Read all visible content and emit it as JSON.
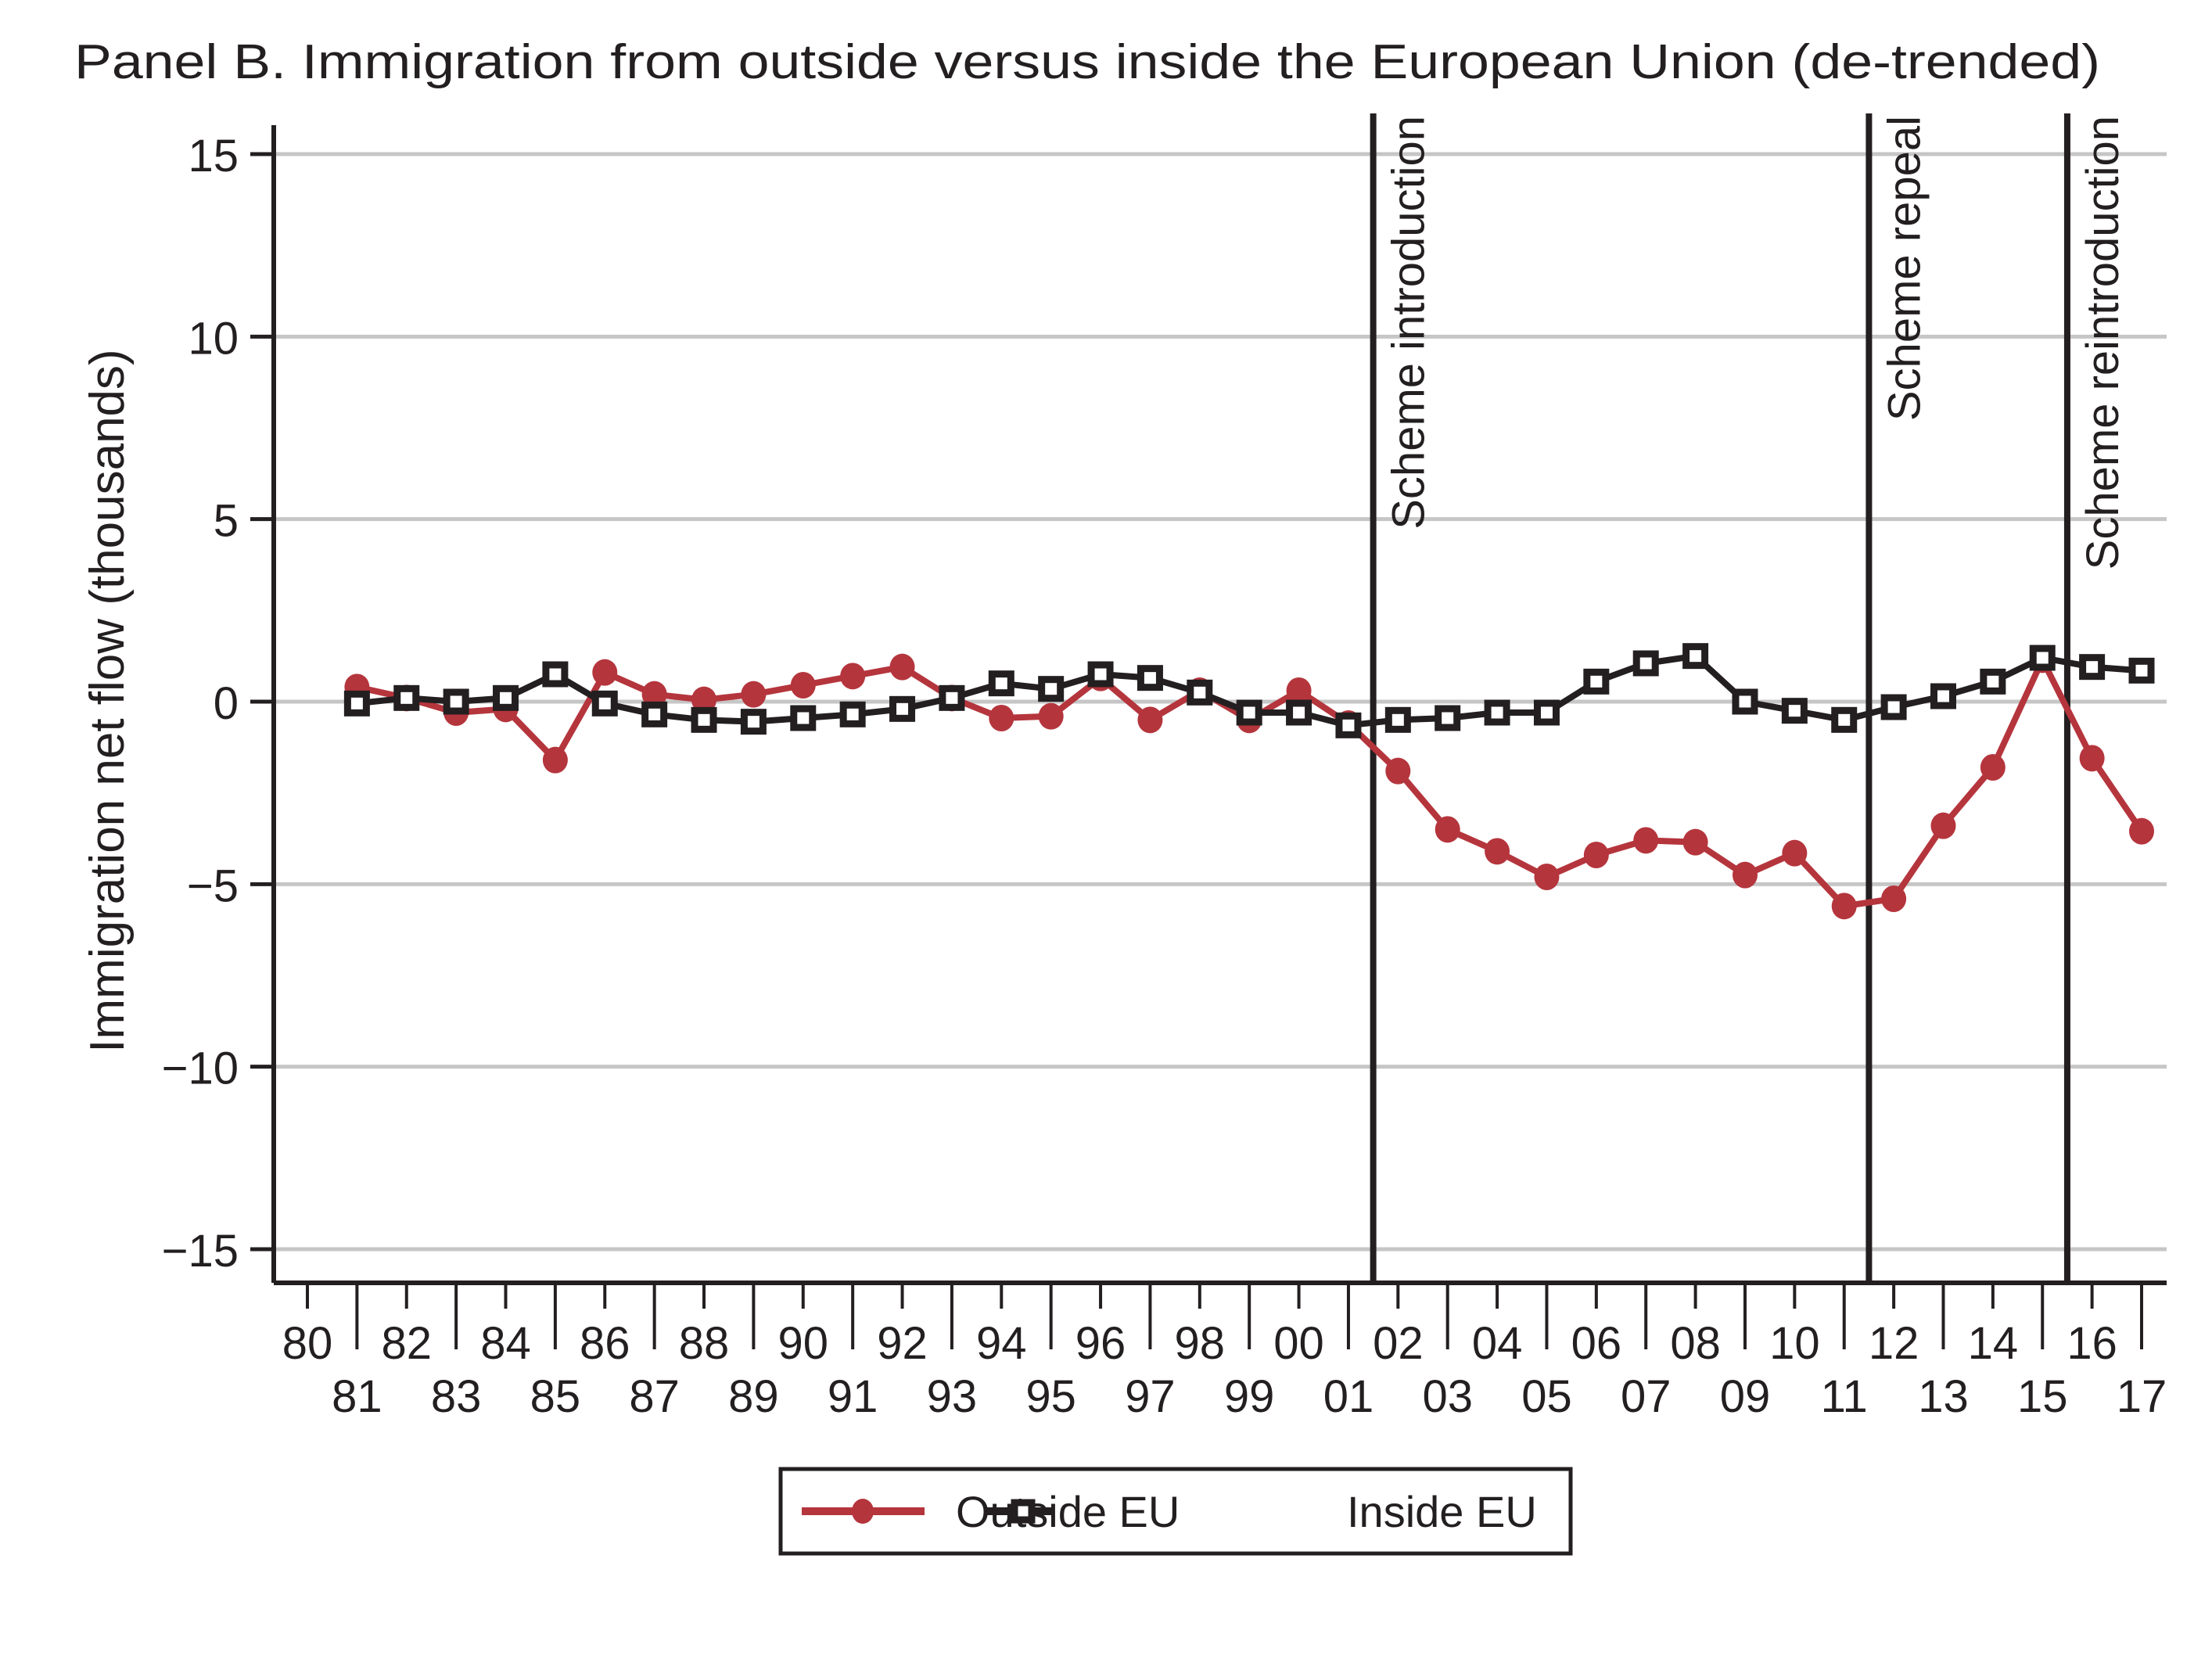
{
  "chart_data": {
    "type": "line",
    "title": "Panel B. Immigration from outside versus inside the European Union (de-trended)",
    "xlabel": "",
    "ylabel": "Immigration net flow (thousands)",
    "ylim": [
      -15,
      15
    ],
    "xlim": [
      1980,
      2017
    ],
    "grid": true,
    "y_ticks": [
      15,
      10,
      5,
      0,
      -5,
      -10,
      -15
    ],
    "y_tick_labels": [
      "15",
      "10",
      "5",
      "0",
      "−5",
      "−10",
      "−15"
    ],
    "x": [
      1981,
      1982,
      1983,
      1984,
      1985,
      1986,
      1987,
      1988,
      1989,
      1990,
      1991,
      1992,
      1993,
      1994,
      1995,
      1996,
      1997,
      1998,
      1999,
      2000,
      2001,
      2002,
      2003,
      2004,
      2005,
      2006,
      2007,
      2008,
      2009,
      2010,
      2011,
      2012,
      2013,
      2014,
      2015,
      2016,
      2017
    ],
    "x_tick_years": [
      1980,
      1981,
      1982,
      1983,
      1984,
      1985,
      1986,
      1987,
      1988,
      1989,
      1990,
      1991,
      1992,
      1993,
      1994,
      1995,
      1996,
      1997,
      1998,
      1999,
      2000,
      2001,
      2002,
      2003,
      2004,
      2005,
      2006,
      2007,
      2008,
      2009,
      2010,
      2011,
      2012,
      2013,
      2014,
      2015,
      2016,
      2017
    ],
    "x_tick_labels": [
      "80",
      "81",
      "82",
      "83",
      "84",
      "85",
      "86",
      "87",
      "88",
      "89",
      "90",
      "91",
      "92",
      "93",
      "94",
      "95",
      "96",
      "97",
      "98",
      "99",
      "00",
      "01",
      "02",
      "03",
      "04",
      "05",
      "06",
      "07",
      "08",
      "09",
      "10",
      "11",
      "12",
      "13",
      "14",
      "15",
      "16",
      "17"
    ],
    "series": [
      {
        "name": "Outside EU",
        "color": "#b5353d",
        "marker": "circle",
        "values": [
          0.4,
          0.1,
          -0.3,
          -0.2,
          -1.6,
          0.8,
          0.2,
          0.05,
          0.2,
          0.45,
          0.7,
          0.95,
          0.1,
          -0.45,
          -0.4,
          0.65,
          -0.5,
          0.3,
          -0.5,
          0.3,
          -0.6,
          -1.9,
          -3.5,
          -4.1,
          -4.8,
          -4.2,
          -3.8,
          -3.85,
          -4.75,
          -4.15,
          -5.6,
          -5.4,
          -3.4,
          -1.8,
          1.15,
          -1.55,
          -3.55
        ]
      },
      {
        "name": "Inside EU",
        "color": "#231f20",
        "marker": "square",
        "values": [
          -0.05,
          0.1,
          0.0,
          0.1,
          0.75,
          -0.05,
          -0.35,
          -0.5,
          -0.55,
          -0.45,
          -0.35,
          -0.2,
          0.1,
          0.5,
          0.35,
          0.75,
          0.65,
          0.25,
          -0.3,
          -0.3,
          -0.65,
          -0.5,
          -0.45,
          -0.3,
          -0.3,
          0.55,
          1.05,
          1.25,
          0.0,
          -0.25,
          -0.5,
          -0.15,
          0.15,
          0.55,
          1.2,
          0.95,
          0.85
        ]
      }
    ],
    "annotations": [
      {
        "label": "Scheme introduction",
        "x": 2001.5
      },
      {
        "label": "Scheme repeal",
        "x": 2011.5
      },
      {
        "label": "Scheme reintroduction",
        "x": 2015.5
      }
    ],
    "legend": {
      "position": "bottom-center",
      "entries": [
        "Outside EU",
        "Inside EU"
      ]
    }
  }
}
